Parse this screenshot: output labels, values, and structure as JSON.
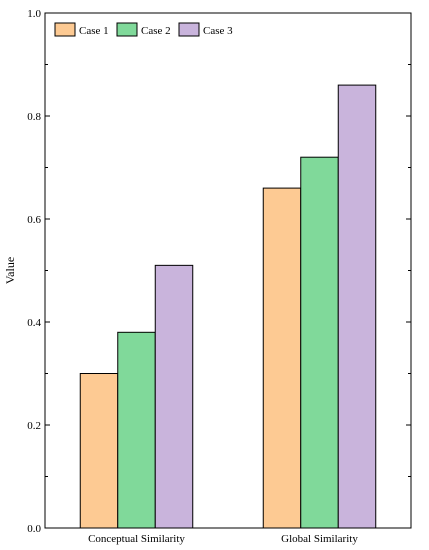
{
  "chart_data": {
    "type": "bar",
    "title": "",
    "xlabel": "",
    "ylabel": "Value",
    "ylim": [
      0,
      1.0
    ],
    "yticks": [
      "0.0",
      "0.2",
      "0.4",
      "0.6",
      "0.8",
      "1.0"
    ],
    "categories": [
      "Conceptual Similarity",
      "Global Similarity"
    ],
    "series": [
      {
        "name": "Case 1",
        "values": [
          0.3,
          0.66
        ],
        "color": "#FDCA93"
      },
      {
        "name": "Case 2",
        "values": [
          0.38,
          0.72
        ],
        "color": "#80D99A"
      },
      {
        "name": "Case 3",
        "values": [
          0.51,
          0.86
        ],
        "color": "#C9B4DC"
      }
    ],
    "legend": {
      "position": "top-left",
      "orientation": "horizontal"
    },
    "grid": false
  }
}
